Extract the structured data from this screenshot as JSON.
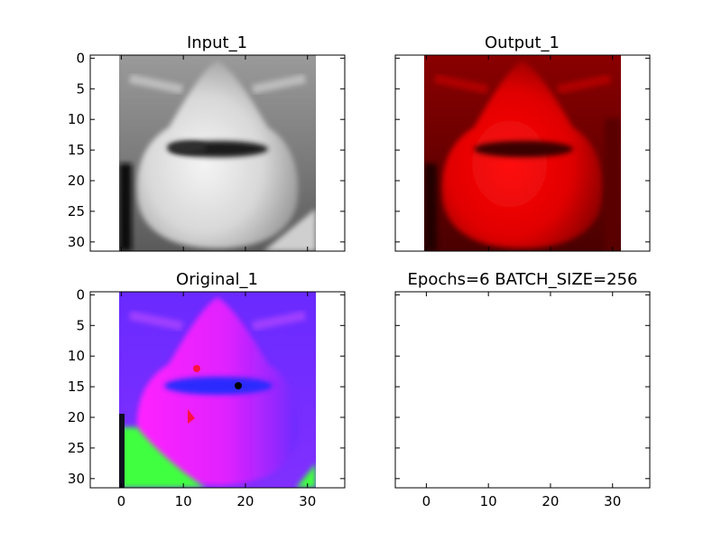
{
  "chart_data": [
    {
      "type": "image",
      "title": "Input_1",
      "colormap": "grayscale",
      "xlim": [
        -5,
        36
      ],
      "ylim": [
        31.5,
        -0.5
      ],
      "x_ticks": [
        0,
        10,
        20,
        30
      ],
      "y_ticks": [
        0,
        5,
        10,
        15,
        20,
        25,
        30
      ],
      "x_tick_labels_visible": false,
      "y_tick_labels_visible": true,
      "image_extent": [
        -0.5,
        31.5,
        31.5,
        -0.5
      ]
    },
    {
      "type": "image",
      "title": "Output_1",
      "colormap": "red channel",
      "xlim": [
        -5,
        36
      ],
      "ylim": [
        31.5,
        -0.5
      ],
      "x_ticks": [
        0,
        10,
        20,
        30
      ],
      "y_ticks": [
        0,
        5,
        10,
        15,
        20,
        25,
        30
      ],
      "x_tick_labels_visible": false,
      "y_tick_labels_visible": false,
      "image_extent": [
        -0.5,
        31.5,
        31.5,
        -0.5
      ]
    },
    {
      "type": "image",
      "title": "Original_1",
      "colormap": "rgb",
      "xlim": [
        -5,
        36
      ],
      "ylim": [
        31.5,
        -0.5
      ],
      "x_ticks": [
        0,
        10,
        20,
        30
      ],
      "y_ticks": [
        0,
        5,
        10,
        15,
        20,
        25,
        30
      ],
      "x_tick_labels_visible": true,
      "y_tick_labels_visible": true,
      "image_extent": [
        -0.5,
        31.5,
        31.5,
        -0.5
      ]
    },
    {
      "type": "empty",
      "title": "Epochs=6 BATCH_SIZE=256",
      "xlim": [
        -5,
        36
      ],
      "ylim": [
        31.5,
        -0.5
      ],
      "x_ticks": [
        0,
        10,
        20,
        30
      ],
      "y_ticks": [
        0,
        5,
        10,
        15,
        20,
        25,
        30
      ],
      "x_tick_labels_visible": true,
      "y_tick_labels_visible": false
    }
  ]
}
